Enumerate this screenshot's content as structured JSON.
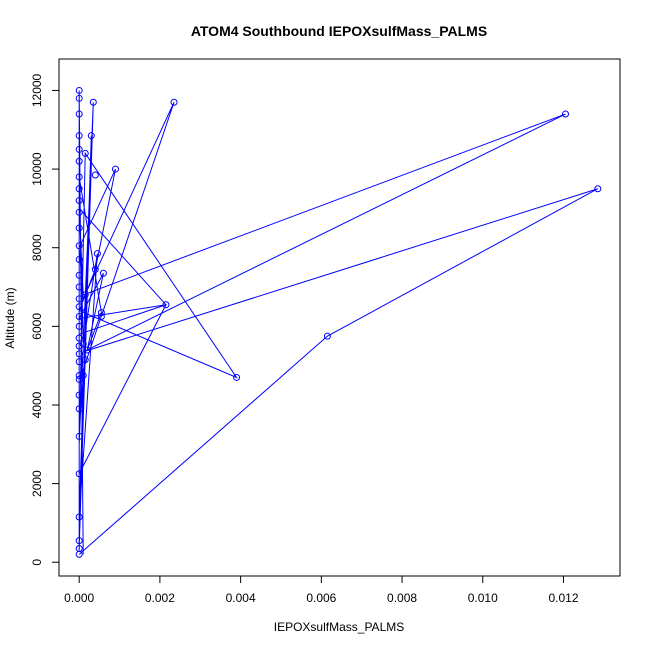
{
  "chart_data": {
    "type": "scatter",
    "title": "ATOM4 Southbound IEPOXsulfMass_PALMS",
    "xlabel": "IEPOXsulfMass_PALMS",
    "ylabel": "Altitude (m)",
    "xlim": [
      -0.0005,
      0.0134
    ],
    "ylim": [
      -350,
      12800
    ],
    "x_ticks": [
      {
        "value": 0.0,
        "label": "0.000"
      },
      {
        "value": 0.002,
        "label": "0.002"
      },
      {
        "value": 0.004,
        "label": "0.004"
      },
      {
        "value": 0.006,
        "label": "0.006"
      },
      {
        "value": 0.008,
        "label": "0.008"
      },
      {
        "value": 0.01,
        "label": "0.010"
      },
      {
        "value": 0.012,
        "label": "0.012"
      }
    ],
    "y_ticks": [
      {
        "value": 0,
        "label": "0"
      },
      {
        "value": 2000,
        "label": "2000"
      },
      {
        "value": 4000,
        "label": "4000"
      },
      {
        "value": 6000,
        "label": "6000"
      },
      {
        "value": 8000,
        "label": "8000"
      },
      {
        "value": 10000,
        "label": "10000"
      },
      {
        "value": 12000,
        "label": "12000"
      }
    ],
    "grid": false,
    "legend": "none",
    "color": "#0000ff",
    "series": [
      {
        "values_xy": [
          [
            0.0,
            200
          ],
          [
            0.0,
            350
          ],
          [
            0.0,
            550
          ],
          [
            0.0,
            1150
          ],
          [
            0.0,
            2250
          ],
          [
            0.0,
            3200
          ],
          [
            0.0,
            3900
          ],
          [
            0.0,
            4250
          ],
          [
            0.0,
            4650
          ],
          [
            0.0,
            4750
          ],
          [
            0.0,
            5100
          ],
          [
            0.0,
            5300
          ],
          [
            0.0,
            5500
          ],
          [
            0.0,
            5700
          ],
          [
            0.0,
            6000
          ],
          [
            0.0,
            6250
          ],
          [
            0.0,
            6500
          ],
          [
            0.0,
            6700
          ],
          [
            0.0,
            7000
          ],
          [
            0.0,
            7300
          ],
          [
            0.0,
            7700
          ],
          [
            0.0,
            8050
          ],
          [
            0.0,
            8500
          ],
          [
            0.0,
            8900
          ],
          [
            0.0,
            9200
          ],
          [
            0.0,
            9500
          ],
          [
            0.0,
            9800
          ],
          [
            0.0,
            10200
          ],
          [
            0.0,
            10500
          ],
          [
            0.0,
            10850
          ],
          [
            0.0,
            11400
          ],
          [
            0.0,
            11800
          ],
          [
            0.0,
            12000
          ],
          [
            0.0001,
            5550
          ],
          [
            0.0001,
            4750
          ],
          [
            0.00015,
            5150
          ],
          [
            0.00015,
            6800
          ],
          [
            0.0002,
            5400
          ],
          [
            0.00015,
            10400
          ],
          [
            0.00035,
            11700
          ],
          [
            0.0003,
            10850
          ],
          [
            0.0004,
            9850
          ],
          [
            0.0004,
            7450
          ],
          [
            0.00045,
            7850
          ],
          [
            0.00055,
            6350
          ],
          [
            0.00055,
            6250
          ],
          [
            0.0006,
            7350
          ],
          [
            0.0009,
            10000
          ],
          [
            0.00215,
            6550
          ],
          [
            0.00235,
            11700
          ],
          [
            0.0039,
            4700
          ],
          [
            0.00615,
            5750
          ],
          [
            0.01205,
            11400
          ],
          [
            0.01285,
            9500
          ]
        ],
        "line_path": [
          [
            0.0,
            200
          ],
          [
            0.00615,
            5750
          ],
          [
            0.01285,
            9500
          ],
          [
            0.0001,
            5350
          ],
          [
            0.01205,
            11400
          ],
          [
            0.0001,
            6800
          ],
          [
            0.0,
            9000
          ],
          [
            0.00215,
            6550
          ],
          [
            0.0,
            5800
          ],
          [
            0.0,
            300
          ],
          [
            0.0001,
            4900
          ],
          [
            0.00235,
            11700
          ],
          [
            0.0001,
            6700
          ],
          [
            0.0,
            8000
          ],
          [
            0.0009,
            10000
          ],
          [
            0.0004,
            7450
          ],
          [
            0.0,
            6400
          ],
          [
            0.0039,
            4700
          ],
          [
            0.00015,
            10400
          ],
          [
            0.0,
            3000
          ],
          [
            0.00035,
            11700
          ],
          [
            0.0,
            350
          ],
          [
            0.0003,
            10850
          ],
          [
            0.0,
            1150
          ],
          [
            0.00045,
            7850
          ],
          [
            0.0001,
            5550
          ],
          [
            0.0,
            9800
          ],
          [
            0.00055,
            6350
          ],
          [
            0.0002,
            5400
          ],
          [
            0.0006,
            7350
          ],
          [
            0.0,
            6200
          ],
          [
            0.00215,
            6550
          ],
          [
            0.0,
            2250
          ],
          [
            0.0,
            12000
          ],
          [
            0.0001,
            200
          ]
        ]
      }
    ]
  }
}
